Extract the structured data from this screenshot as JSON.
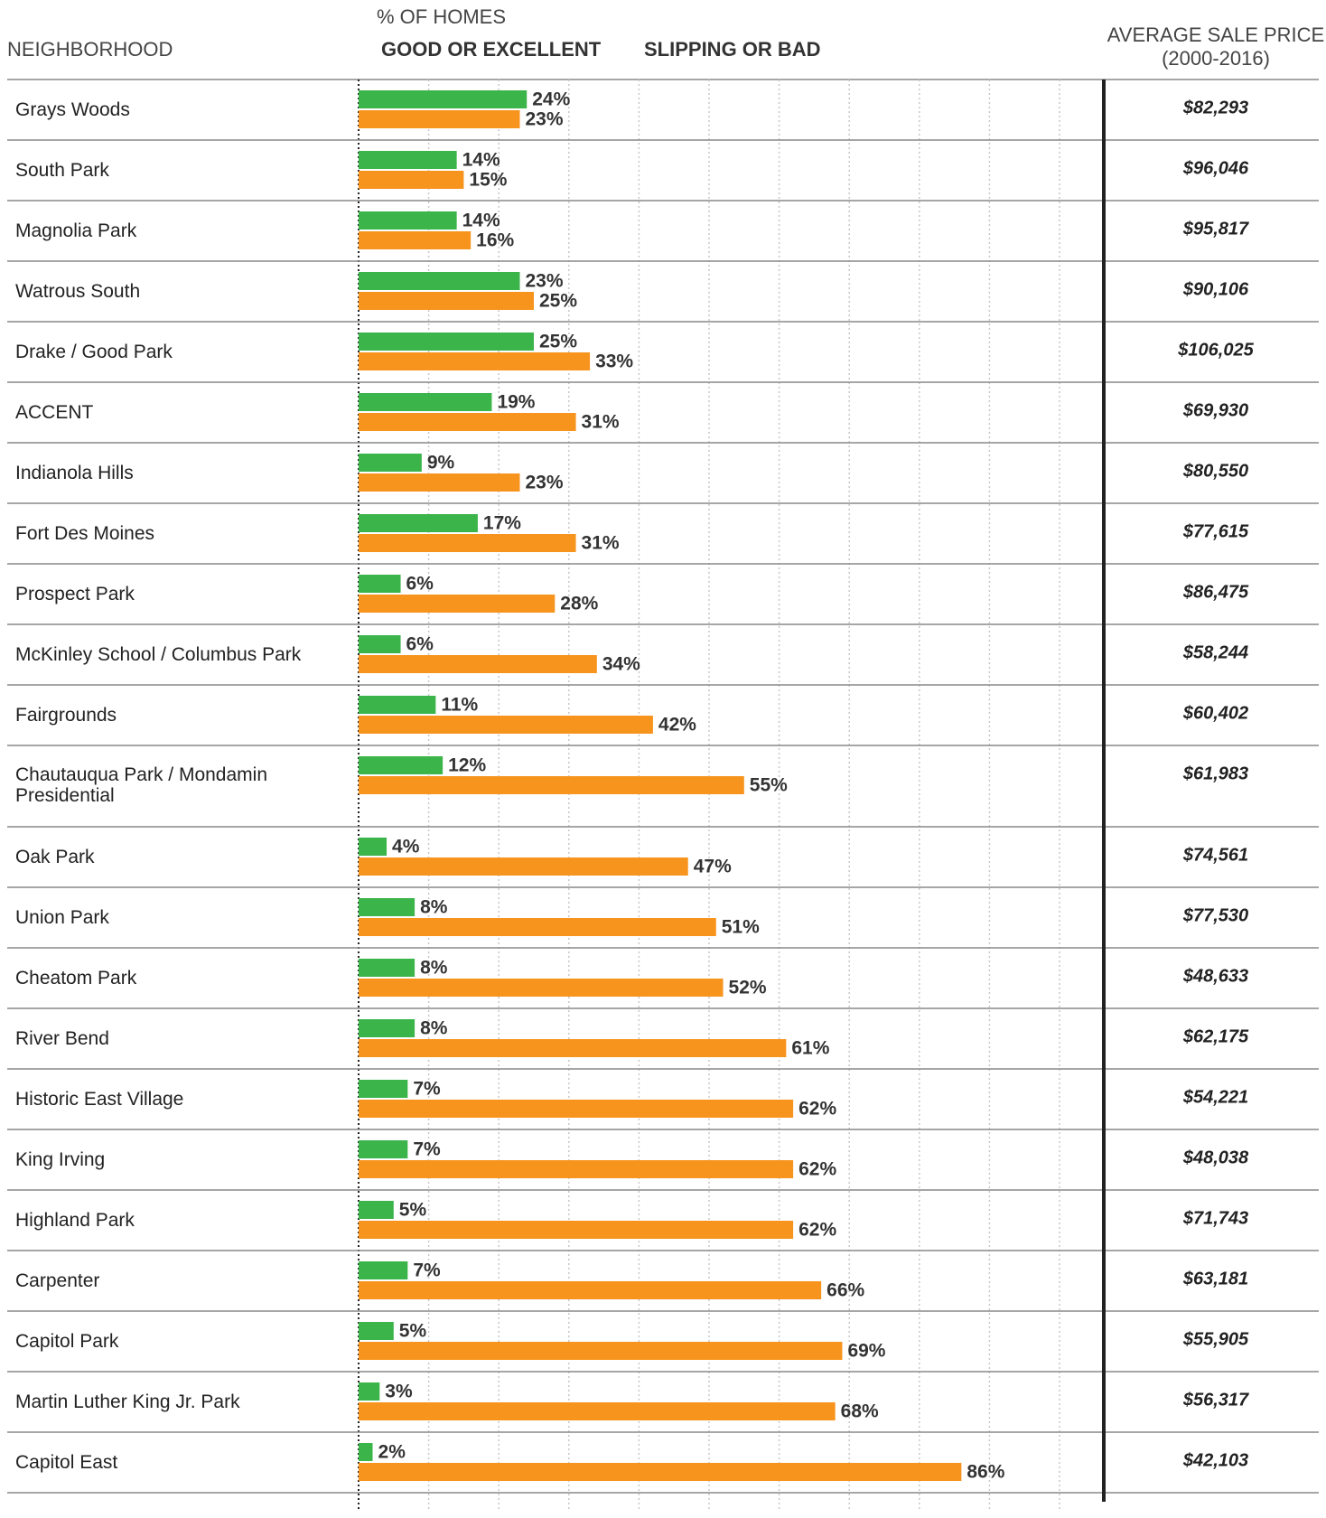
{
  "chart_data": {
    "type": "bar",
    "orientation": "horizontal",
    "category_header": "NEIGHBORHOOD",
    "legend_title": "% OF HOMES",
    "categories": [
      "Grays Woods",
      "South Park",
      "Magnolia Park",
      "Watrous South",
      "Drake / Good Park",
      "ACCENT",
      "Indianola Hills",
      "Fort Des Moines",
      "Prospect Park",
      "McKinley School / Columbus Park",
      "Fairgrounds",
      "Chautauqua Park / Mondamin Presidential",
      "Oak Park",
      "Union Park",
      "Cheatom Park",
      "River Bend",
      "Historic East Village",
      "King Irving",
      "Highland Park",
      "Carpenter",
      "Capitol Park",
      "Martin Luther King Jr. Park",
      "Capitol East"
    ],
    "series": [
      {
        "name": "GOOD OR EXCELLENT",
        "color": "#3bb44a",
        "label_color": "#3aa745",
        "values": [
          24,
          14,
          14,
          23,
          25,
          19,
          9,
          17,
          6,
          6,
          11,
          12,
          4,
          8,
          8,
          8,
          7,
          7,
          5,
          7,
          5,
          3,
          2
        ],
        "value_labels": [
          "24%",
          "14%",
          "14%",
          "23%",
          "25%",
          "19%",
          "9%",
          "17%",
          "6%",
          "6%",
          "11%",
          "12%",
          "4%",
          "8%",
          "8%",
          "8%",
          "7%",
          "7%",
          "5%",
          "7%",
          "5%",
          "3%",
          "2%"
        ]
      },
      {
        "name": "SLIPPING OR BAD",
        "color": "#f7941d",
        "label_color": "#f0922b",
        "values": [
          23,
          15,
          16,
          25,
          33,
          31,
          23,
          31,
          28,
          34,
          42,
          55,
          47,
          51,
          52,
          61,
          62,
          62,
          62,
          66,
          69,
          68,
          86
        ],
        "value_labels": [
          "23%",
          "15%",
          "16%",
          "25%",
          "33%",
          "31%",
          "23%",
          "31%",
          "28%",
          "34%",
          "42%",
          "55%",
          "47%",
          "51%",
          "52%",
          "61%",
          "62%",
          "62%",
          "62%",
          "66%",
          "69%",
          "68%",
          "86%"
        ]
      }
    ],
    "xlim": [
      0,
      100
    ],
    "xticks": [
      {
        "value": 0,
        "label": "0%"
      },
      {
        "value": 10,
        "label": "10%"
      },
      {
        "value": 20,
        "label": "20%"
      },
      {
        "value": 30,
        "label": "30%"
      },
      {
        "value": 40,
        "label": "40%"
      },
      {
        "value": 50,
        "label": "50%"
      },
      {
        "value": 60,
        "label": "60%"
      },
      {
        "value": 70,
        "label": "70%"
      },
      {
        "value": 80,
        "label": "80%"
      },
      {
        "value": 90,
        "label": "90%"
      },
      {
        "value": 100,
        "label": "100%"
      }
    ],
    "grid": true,
    "average_sale_price": {
      "header": "AVERAGE SALE PRICE",
      "subheader": "(2000-2016)",
      "values": [
        "$82,293",
        "$96,046",
        "$95,817",
        "$90,106",
        "$106,025",
        "$69,930",
        "$80,550",
        "$77,615",
        "$86,475",
        "$58,244",
        "$60,402",
        "$61,983",
        "$74,561",
        "$77,530",
        "$48,633",
        "$62,175",
        "$54,221",
        "$48,038",
        "$71,743",
        "$63,181",
        "$55,905",
        "$56,317",
        "$42,103"
      ]
    }
  }
}
